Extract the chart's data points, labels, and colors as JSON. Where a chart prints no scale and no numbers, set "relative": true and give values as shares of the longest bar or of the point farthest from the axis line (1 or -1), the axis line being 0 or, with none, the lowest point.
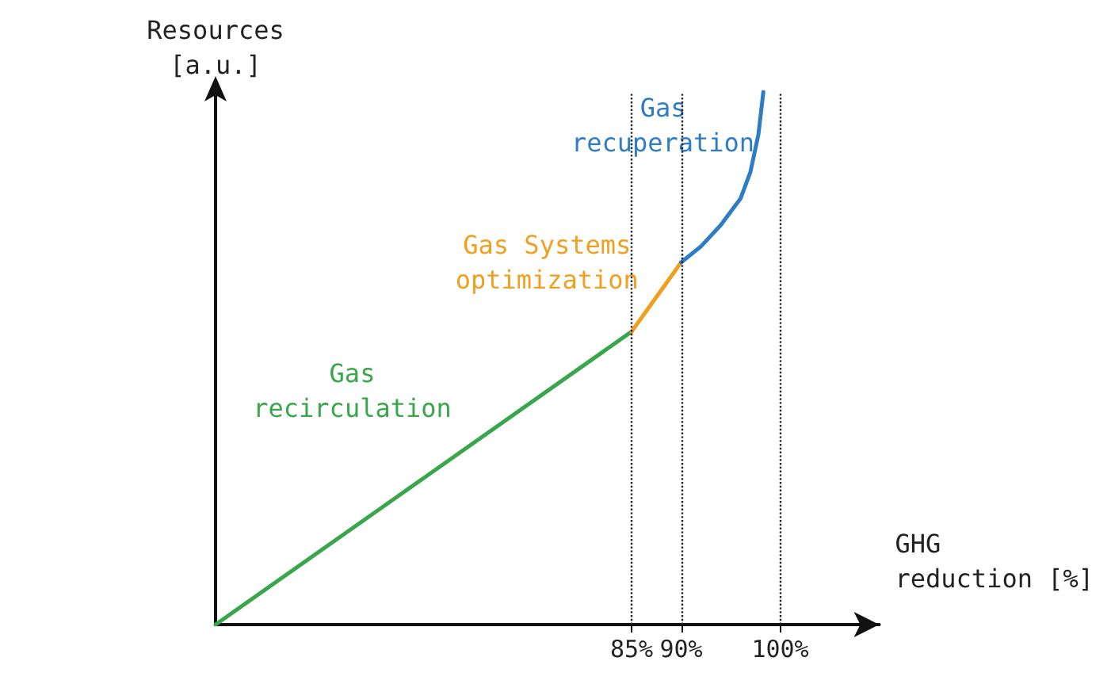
{
  "chart_data": {
    "type": "line",
    "relative": true,
    "xlabel": "GHG\nreduction [%]",
    "ylabel": "Resources\n[a.u.]",
    "xlim": [
      43,
      110
    ],
    "xticks": [
      {
        "value": 85,
        "label": "85%"
      },
      {
        "value": 90,
        "label": "90%"
      },
      {
        "value": 100,
        "label": "100%"
      }
    ],
    "series": [
      {
        "name": "Gas\nrecirculation",
        "color": "#3aa64c",
        "x": [
          43,
          64,
          85
        ],
        "values": [
          0,
          0.275,
          0.55
        ]
      },
      {
        "name": "Gas Systems\noptimization",
        "color": "#f0a020",
        "x": [
          85,
          87.5,
          90
        ],
        "values": [
          0.55,
          0.615,
          0.68
        ]
      },
      {
        "name": "Gas\nrecuperation",
        "color": "#2e7cc4",
        "x": [
          90,
          92,
          94,
          96,
          97,
          97.8,
          98.3
        ],
        "values": [
          0.68,
          0.71,
          0.75,
          0.8,
          0.85,
          0.92,
          1
        ]
      }
    ],
    "ref_lines": [
      {
        "axis": "x",
        "value": 85,
        "line_style": "dotted"
      },
      {
        "axis": "x",
        "value": 90,
        "line_style": "dotted"
      },
      {
        "axis": "x",
        "value": 100,
        "line_style": "dotted"
      }
    ],
    "grid": false,
    "legend": false,
    "marker": "none",
    "line_style": "solid"
  }
}
